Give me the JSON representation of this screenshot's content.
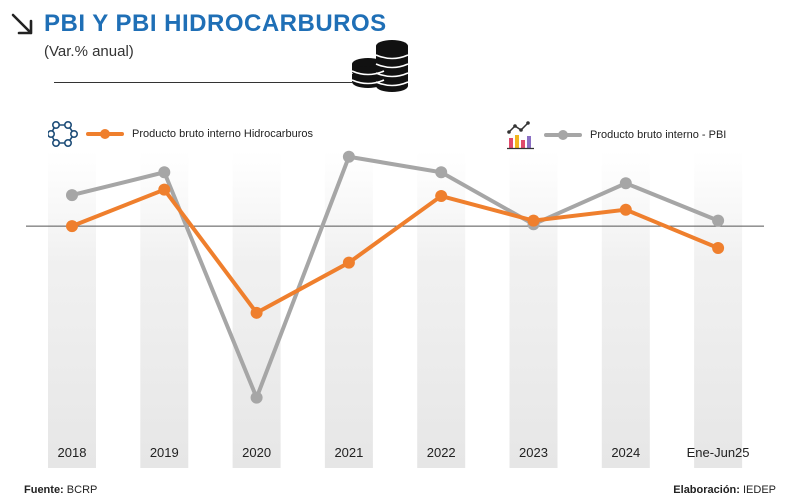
{
  "header": {
    "title": "PBI Y PBI HIDROCARBUROS",
    "subtitle": "(Var.% anual)"
  },
  "icons": {
    "title": "arrow-down-right-icon",
    "decor": "coins-stack-icon",
    "legend_hydro": "molecule-icon",
    "legend_gdp": "analytics-chart-icon"
  },
  "legend": {
    "hydro": "Producto bruto interno Hidrocarburos",
    "gdp": "Producto bruto interno - PBI"
  },
  "colors": {
    "hydro": "#ef7f2d",
    "gdp": "#a6a6a6",
    "title": "#1f6fb6"
  },
  "footer": {
    "source_label": "Fuente:",
    "source_value": "BCRP",
    "credit_label": "Elaboración:",
    "credit_value": "IEDEP"
  },
  "chart_data": {
    "type": "line",
    "categories": [
      "2018",
      "2019",
      "2020",
      "2021",
      "2022",
      "2023",
      "2024",
      "Ene-Jun25"
    ],
    "series": [
      {
        "name": "Producto bruto interno Hidrocarburos",
        "values": [
          0.0,
          4.0,
          -9.5,
          -4.0,
          3.3,
          0.6,
          1.8,
          -2.4
        ]
      },
      {
        "name": "Producto bruto interno - PBI",
        "values": [
          3.4,
          5.9,
          -18.8,
          7.6,
          5.9,
          0.2,
          4.7,
          0.6
        ]
      }
    ],
    "ylim": [
      -23,
      9
    ],
    "baseline": 0
  }
}
